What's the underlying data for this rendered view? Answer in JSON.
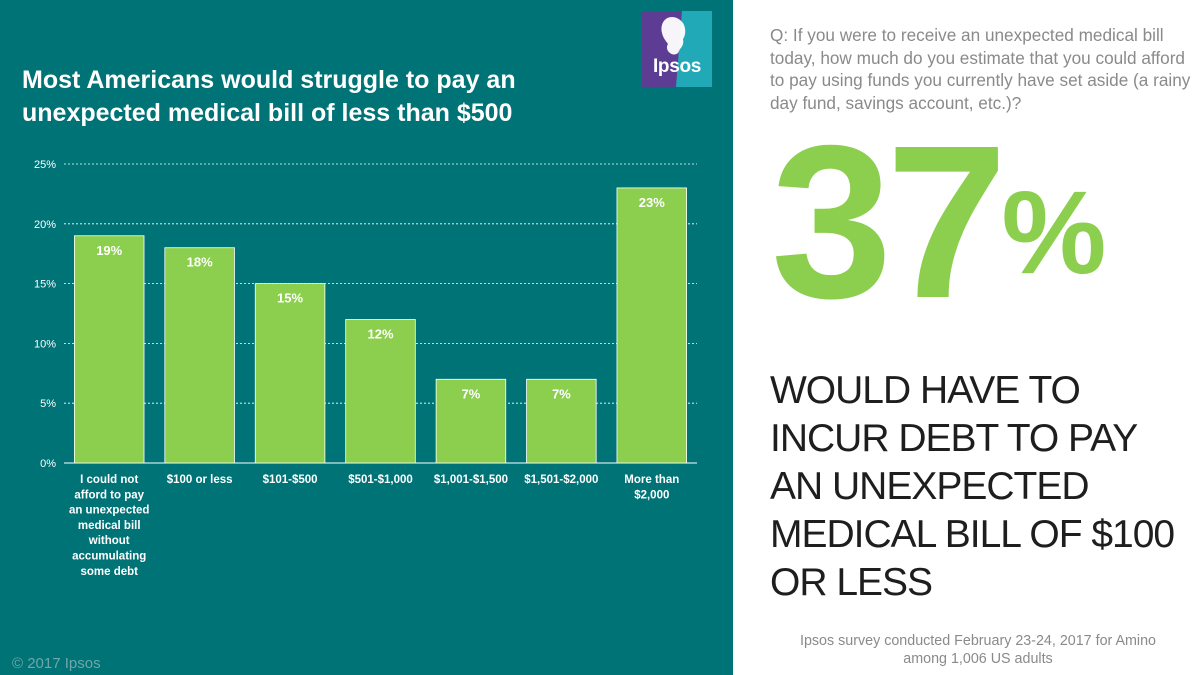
{
  "chart_title": "Most Americans would struggle to pay an unexpected medical bill of less than $500",
  "logo_text": "Ipsos",
  "copyright": "© 2017 Ipsos",
  "question": "Q: If you were to receive an unexpected medical bill today, how much do you estimate that you could afford to pay using funds you currently have set aside (a rainy day fund, savings account, etc.)?",
  "stat": {
    "number": "37",
    "percent_sign": "%",
    "text": "WOULD HAVE TO INCUR DEBT TO PAY AN UNEXPECTED MEDICAL BILL OF $100 OR LESS"
  },
  "footnote": {
    "line1": "Ipsos survey conducted February 23-24, 2017 for Amino",
    "line2": "among 1,006 US adults"
  },
  "colors": {
    "background": "#007377",
    "bar": "#8ccf4e",
    "accent_green": "#8ccf4e",
    "text_dark": "#1e1e1e",
    "text_gray": "#8a8a8a"
  },
  "chart_data": {
    "type": "bar",
    "title": "Most Americans would struggle to pay an unexpected medical bill of less than $500",
    "xlabel": "",
    "ylabel": "",
    "ylim": [
      0,
      25
    ],
    "yticks": [
      0,
      5,
      10,
      15,
      20,
      25
    ],
    "ytick_labels": [
      "0%",
      "5%",
      "10%",
      "15%",
      "20%",
      "25%"
    ],
    "grid": true,
    "categories": [
      [
        "I could not",
        "afford to pay",
        "an unexpected",
        "medical bill",
        "without",
        "accumulating",
        "some debt"
      ],
      [
        "$100 or less"
      ],
      [
        "$101-$500"
      ],
      [
        "$501-$1,000"
      ],
      [
        "$1,001-$1,500"
      ],
      [
        "$1,501-$2,000"
      ],
      [
        "More than",
        "$2,000"
      ]
    ],
    "values": [
      19,
      18,
      15,
      12,
      7,
      7,
      23
    ],
    "value_labels": [
      "19%",
      "18%",
      "15%",
      "12%",
      "7%",
      "7%",
      "23%"
    ]
  }
}
